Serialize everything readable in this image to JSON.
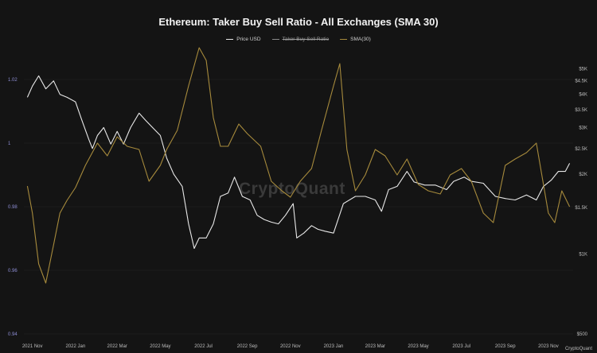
{
  "chart_data": {
    "type": "line",
    "title": "Ethereum: Taker Buy Sell Ratio - All Exchanges (SMA 30)",
    "legend": {
      "placement": "top-center",
      "entries": [
        {
          "label": "Price USD",
          "color": "#e8e8e8",
          "struck": false
        },
        {
          "label": "Taker Buy Sell Ratio",
          "color": "#8a8a8a",
          "struck": true
        },
        {
          "label": "SMA(30)",
          "color": "#a68a3c",
          "struck": false
        }
      ]
    },
    "watermark": "CryptoQuant",
    "credit": "CryptoQuant",
    "grid": {
      "horizontal": true,
      "vertical": false
    },
    "x_axis": {
      "ticks": [
        "2021 Nov",
        "2022 Jan",
        "2022 Mar",
        "2022 May",
        "2022 Jul",
        "2022 Sep",
        "2022 Nov",
        "2023 Jan",
        "2023 Mar",
        "2023 May",
        "2023 Jul",
        "2023 Sep",
        "2023 Nov"
      ]
    },
    "y_left": {
      "label": "",
      "range": [
        0.94,
        1.03
      ],
      "ticks": [
        "1.02",
        "1",
        "0.98",
        "0.96",
        "0.94"
      ],
      "tick_values": [
        1.02,
        1.0,
        0.98,
        0.96,
        0.94
      ],
      "color": "#8f8fd6"
    },
    "y_right": {
      "label": "",
      "scale": "log",
      "range": [
        500,
        6000
      ],
      "ticks": [
        "$5K",
        "$4.5K",
        "$4K",
        "$3.5K",
        "$3K",
        "$2.5K",
        "$2K",
        "$1.5K",
        "$1K",
        "$500"
      ],
      "tick_values": [
        5000,
        4500,
        4000,
        3500,
        3000,
        2500,
        2000,
        1500,
        1000,
        500
      ],
      "color": "#bdbdbd"
    },
    "series": [
      {
        "name": "Price USD",
        "axis": "right",
        "color": "#e8e8e8",
        "x": [
          "2021-10-25",
          "2021-11-01",
          "2021-11-10",
          "2021-11-20",
          "2021-12-01",
          "2021-12-10",
          "2021-12-20",
          "2022-01-01",
          "2022-01-10",
          "2022-01-20",
          "2022-01-25",
          "2022-02-01",
          "2022-02-10",
          "2022-02-20",
          "2022-03-01",
          "2022-03-10",
          "2022-03-20",
          "2022-04-01",
          "2022-04-10",
          "2022-04-20",
          "2022-05-01",
          "2022-05-10",
          "2022-05-20",
          "2022-06-01",
          "2022-06-10",
          "2022-06-18",
          "2022-06-25",
          "2022-07-05",
          "2022-07-15",
          "2022-07-25",
          "2022-08-05",
          "2022-08-14",
          "2022-08-25",
          "2022-09-05",
          "2022-09-15",
          "2022-09-25",
          "2022-10-05",
          "2022-10-15",
          "2022-10-25",
          "2022-11-05",
          "2022-11-10",
          "2022-11-20",
          "2022-12-01",
          "2022-12-10",
          "2022-12-20",
          "2023-01-01",
          "2023-01-15",
          "2023-02-01",
          "2023-02-15",
          "2023-03-01",
          "2023-03-10",
          "2023-03-20",
          "2023-04-01",
          "2023-04-15",
          "2023-04-25",
          "2023-05-10",
          "2023-05-25",
          "2023-06-10",
          "2023-06-20",
          "2023-07-05",
          "2023-07-15",
          "2023-08-01",
          "2023-08-18",
          "2023-09-01",
          "2023-09-15",
          "2023-10-01",
          "2023-10-15",
          "2023-10-25",
          "2023-11-05",
          "2023-11-15",
          "2023-11-25",
          "2023-12-01"
        ],
        "y": [
          3900,
          4300,
          4700,
          4200,
          4500,
          4000,
          3900,
          3750,
          3200,
          2700,
          2500,
          2800,
          3000,
          2600,
          2900,
          2600,
          3000,
          3400,
          3200,
          3000,
          2800,
          2300,
          2000,
          1800,
          1300,
          1050,
          1150,
          1150,
          1300,
          1650,
          1700,
          1950,
          1650,
          1600,
          1400,
          1350,
          1320,
          1300,
          1400,
          1550,
          1150,
          1200,
          1280,
          1240,
          1220,
          1200,
          1550,
          1650,
          1650,
          1600,
          1450,
          1750,
          1800,
          2050,
          1870,
          1820,
          1820,
          1750,
          1880,
          1950,
          1880,
          1850,
          1650,
          1620,
          1600,
          1670,
          1600,
          1800,
          1900,
          2050,
          2050,
          2200
        ]
      },
      {
        "name": "SMA(30)",
        "axis": "left",
        "color": "#a68a3c",
        "x": [
          "2021-10-25",
          "2021-11-01",
          "2021-11-10",
          "2021-11-20",
          "2021-12-01",
          "2021-12-10",
          "2021-12-20",
          "2022-01-01",
          "2022-01-15",
          "2022-02-01",
          "2022-02-15",
          "2022-03-01",
          "2022-03-15",
          "2022-04-01",
          "2022-04-15",
          "2022-05-01",
          "2022-05-10",
          "2022-05-25",
          "2022-06-10",
          "2022-06-25",
          "2022-07-05",
          "2022-07-15",
          "2022-07-25",
          "2022-08-05",
          "2022-08-20",
          "2022-09-01",
          "2022-09-20",
          "2022-10-05",
          "2022-10-20",
          "2022-11-01",
          "2022-11-15",
          "2022-12-01",
          "2022-12-15",
          "2023-01-01",
          "2023-01-10",
          "2023-01-20",
          "2023-02-01",
          "2023-02-15",
          "2023-03-01",
          "2023-03-15",
          "2023-04-01",
          "2023-04-15",
          "2023-05-01",
          "2023-05-15",
          "2023-06-01",
          "2023-06-15",
          "2023-07-01",
          "2023-07-15",
          "2023-08-01",
          "2023-08-15",
          "2023-09-01",
          "2023-09-15",
          "2023-10-01",
          "2023-10-15",
          "2023-11-01",
          "2023-11-10",
          "2023-11-20",
          "2023-12-01"
        ],
        "y": [
          0.9865,
          0.978,
          0.962,
          0.956,
          0.968,
          0.978,
          0.982,
          0.986,
          0.993,
          1.0,
          0.996,
          1.002,
          0.999,
          0.998,
          0.988,
          0.993,
          0.998,
          1.004,
          1.018,
          1.03,
          1.026,
          1.008,
          0.999,
          0.999,
          1.006,
          1.003,
          0.999,
          0.988,
          0.985,
          0.983,
          0.988,
          0.992,
          1.004,
          1.018,
          1.025,
          0.998,
          0.985,
          0.99,
          0.998,
          0.996,
          0.99,
          0.995,
          0.987,
          0.985,
          0.984,
          0.99,
          0.992,
          0.988,
          0.978,
          0.975,
          0.993,
          0.995,
          0.997,
          1.0,
          0.978,
          0.975,
          0.985,
          0.98
        ]
      }
    ]
  }
}
